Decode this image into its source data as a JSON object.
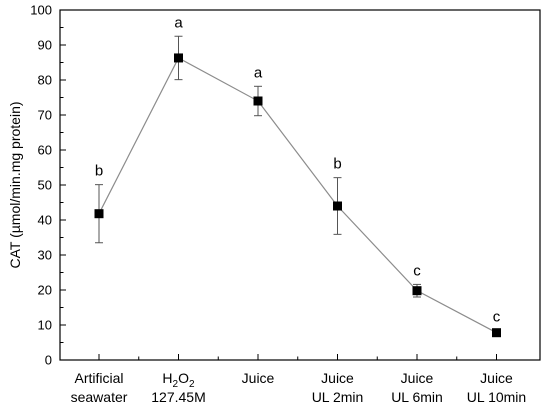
{
  "chart_data": {
    "type": "line",
    "ylabel": "CAT (µmol/min.mg protein)",
    "xlabel": "",
    "ylim": [
      0,
      100
    ],
    "yticks": [
      0,
      10,
      20,
      30,
      40,
      50,
      60,
      70,
      80,
      90,
      100
    ],
    "grid": false,
    "legend": "none",
    "colors": {
      "line": "#8c8c8c",
      "marker": "#000000"
    },
    "categories": [
      {
        "lines": [
          "Artificial",
          "seawater"
        ]
      },
      {
        "lines": [
          {
            "base": "H",
            "sub1": "2",
            "mid": "O",
            "sub2": "2"
          },
          "127.45M"
        ]
      },
      {
        "lines": [
          "Juice"
        ]
      },
      {
        "lines": [
          "Juice",
          "UL 2min"
        ]
      },
      {
        "lines": [
          "Juice",
          "UL 6min"
        ]
      },
      {
        "lines": [
          "Juice",
          "UL 10min"
        ]
      }
    ],
    "series": [
      {
        "values": [
          41.8,
          86.3,
          74.0,
          44.0,
          19.8,
          7.8
        ],
        "error": [
          8.3,
          6.2,
          4.2,
          8.1,
          1.8,
          0.6
        ],
        "significance": [
          "b",
          "a",
          "a",
          "b",
          "c",
          "c"
        ]
      }
    ]
  }
}
